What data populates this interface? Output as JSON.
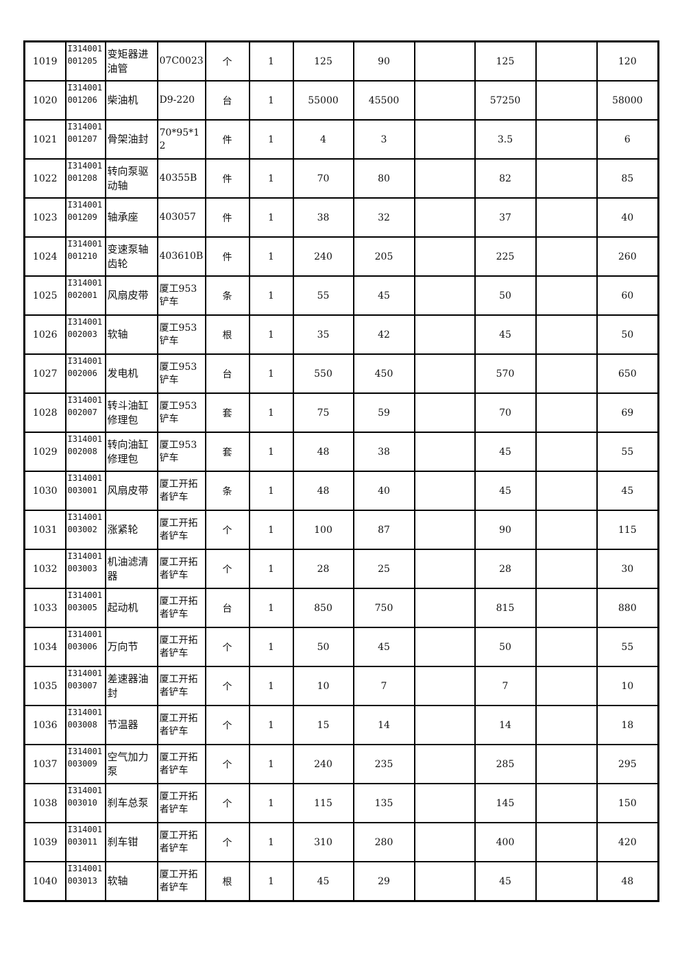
{
  "rows": [
    {
      "no": "1019",
      "code": "I314001001205",
      "name": "变矩器进油管",
      "spec": "07C0023",
      "unit": "个",
      "qty": "1",
      "p1": "125",
      "p2": "90",
      "p3": "",
      "p4": "125",
      "p5": "",
      "p6": "120"
    },
    {
      "no": "1020",
      "code": "I314001001206",
      "name": "柴油机",
      "spec": "D9-220",
      "unit": "台",
      "qty": "1",
      "p1": "55000",
      "p2": "45500",
      "p3": "",
      "p4": "57250",
      "p5": "",
      "p6": "58000"
    },
    {
      "no": "1021",
      "code": "I314001001207",
      "name": "骨架油封",
      "spec": "70*95*12",
      "unit": "件",
      "qty": "1",
      "p1": "4",
      "p2": "3",
      "p3": "",
      "p4": "3.5",
      "p5": "",
      "p6": "6"
    },
    {
      "no": "1022",
      "code": "I314001001208",
      "name": "转向泵驱动轴",
      "spec": "40355B",
      "unit": "件",
      "qty": "1",
      "p1": "70",
      "p2": "80",
      "p3": "",
      "p4": "82",
      "p5": "",
      "p6": "85"
    },
    {
      "no": "1023",
      "code": "I314001001209",
      "name": "轴承座",
      "spec": "403057",
      "unit": "件",
      "qty": "1",
      "p1": "38",
      "p2": "32",
      "p3": "",
      "p4": "37",
      "p5": "",
      "p6": "40"
    },
    {
      "no": "1024",
      "code": "I314001001210",
      "name": "变速泵轴齿轮",
      "spec": "403610B",
      "unit": "件",
      "qty": "1",
      "p1": "240",
      "p2": "205",
      "p3": "",
      "p4": "225",
      "p5": "",
      "p6": "260"
    },
    {
      "no": "1025",
      "code": "I314001002001",
      "name": "风扇皮带",
      "spec": "厦工953铲车",
      "unit": "条",
      "qty": "1",
      "p1": "55",
      "p2": "45",
      "p3": "",
      "p4": "50",
      "p5": "",
      "p6": "60"
    },
    {
      "no": "1026",
      "code": "I314001002003",
      "name": "软轴",
      "spec": "厦工953铲车",
      "unit": "根",
      "qty": "1",
      "p1": "35",
      "p2": "42",
      "p3": "",
      "p4": "45",
      "p5": "",
      "p6": "50"
    },
    {
      "no": "1027",
      "code": "I314001002006",
      "name": "发电机",
      "spec": "厦工953铲车",
      "unit": "台",
      "qty": "1",
      "p1": "550",
      "p2": "450",
      "p3": "",
      "p4": "570",
      "p5": "",
      "p6": "650"
    },
    {
      "no": "1028",
      "code": "I314001002007",
      "name": "转斗油缸修理包",
      "spec": "厦工953铲车",
      "unit": "套",
      "qty": "1",
      "p1": "75",
      "p2": "59",
      "p3": "",
      "p4": "70",
      "p5": "",
      "p6": "69"
    },
    {
      "no": "1029",
      "code": "I314001002008",
      "name": "转向油缸修理包",
      "spec": "厦工953铲车",
      "unit": "套",
      "qty": "1",
      "p1": "48",
      "p2": "38",
      "p3": "",
      "p4": "45",
      "p5": "",
      "p6": "55"
    },
    {
      "no": "1030",
      "code": "I314001003001",
      "name": "风扇皮带",
      "spec": "厦工开拓者铲车",
      "unit": "条",
      "qty": "1",
      "p1": "48",
      "p2": "40",
      "p3": "",
      "p4": "45",
      "p5": "",
      "p6": "45"
    },
    {
      "no": "1031",
      "code": "I314001003002",
      "name": "涨紧轮",
      "spec": "厦工开拓者铲车",
      "unit": "个",
      "qty": "1",
      "p1": "100",
      "p2": "87",
      "p3": "",
      "p4": "90",
      "p5": "",
      "p6": "115"
    },
    {
      "no": "1032",
      "code": "I314001003003",
      "name": "机油滤清器",
      "spec": "厦工开拓者铲车",
      "unit": "个",
      "qty": "1",
      "p1": "28",
      "p2": "25",
      "p3": "",
      "p4": "28",
      "p5": "",
      "p6": "30"
    },
    {
      "no": "1033",
      "code": "I314001003005",
      "name": "起动机",
      "spec": "厦工开拓者铲车",
      "unit": "台",
      "qty": "1",
      "p1": "850",
      "p2": "750",
      "p3": "",
      "p4": "815",
      "p5": "",
      "p6": "880"
    },
    {
      "no": "1034",
      "code": "I314001003006",
      "name": "万向节",
      "spec": "厦工开拓者铲车",
      "unit": "个",
      "qty": "1",
      "p1": "50",
      "p2": "45",
      "p3": "",
      "p4": "50",
      "p5": "",
      "p6": "55"
    },
    {
      "no": "1035",
      "code": "I314001003007",
      "name": "差速器油封",
      "spec": "厦工开拓者铲车",
      "unit": "个",
      "qty": "1",
      "p1": "10",
      "p2": "7",
      "p3": "",
      "p4": "7",
      "p5": "",
      "p6": "10"
    },
    {
      "no": "1036",
      "code": "I314001003008",
      "name": "节温器",
      "spec": "厦工开拓者铲车",
      "unit": "个",
      "qty": "1",
      "p1": "15",
      "p2": "14",
      "p3": "",
      "p4": "14",
      "p5": "",
      "p6": "18"
    },
    {
      "no": "1037",
      "code": "I314001003009",
      "name": "空气加力泵",
      "spec": "厦工开拓者铲车",
      "unit": "个",
      "qty": "1",
      "p1": "240",
      "p2": "235",
      "p3": "",
      "p4": "285",
      "p5": "",
      "p6": "295"
    },
    {
      "no": "1038",
      "code": "I314001003010",
      "name": "刹车总泵",
      "spec": "厦工开拓者铲车",
      "unit": "个",
      "qty": "1",
      "p1": "115",
      "p2": "135",
      "p3": "",
      "p4": "145",
      "p5": "",
      "p6": "150"
    },
    {
      "no": "1039",
      "code": "I314001003011",
      "name": "刹车钳",
      "spec": "厦工开拓者铲车",
      "unit": "个",
      "qty": "1",
      "p1": "310",
      "p2": "280",
      "p3": "",
      "p4": "400",
      "p5": "",
      "p6": "420"
    },
    {
      "no": "1040",
      "code": "I314001003013",
      "name": "软轴",
      "spec": "厦工开拓者铲车",
      "unit": "根",
      "qty": "1",
      "p1": "45",
      "p2": "29",
      "p3": "",
      "p4": "45",
      "p5": "",
      "p6": "48"
    }
  ]
}
